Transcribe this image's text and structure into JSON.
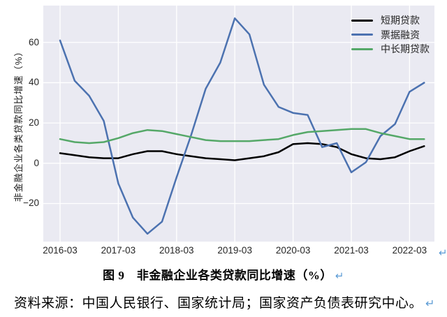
{
  "figure": {
    "y_axis_label": "非金融企业各类贷款同比增速（%）",
    "legend": [
      {
        "label": "短期贷款",
        "color": "#000000"
      },
      {
        "label": "票据融资",
        "color": "#4c72b0"
      },
      {
        "label": "中长期贷款",
        "color": "#55a868"
      }
    ],
    "return_mark": "↵"
  },
  "caption": {
    "text": "图 9　非金融企业各类贷款同比增速（%）",
    "return_mark": "↵"
  },
  "source": {
    "text": "资料来源：中国人民银行、国家统计局；国家资产负债表研究中心。",
    "return_mark": "↵"
  },
  "chart_data": {
    "type": "line",
    "title": "图 9　非金融企业各类贷款同比增速（%）",
    "xlabel": "",
    "ylabel": "非金融企业各类贷款同比增速（%）",
    "x": [
      "2016-03",
      "2016-06",
      "2016-09",
      "2016-12",
      "2017-03",
      "2017-06",
      "2017-09",
      "2017-12",
      "2018-03",
      "2018-06",
      "2018-09",
      "2018-12",
      "2019-03",
      "2019-06",
      "2019-09",
      "2019-12",
      "2020-03",
      "2020-06",
      "2020-09",
      "2020-12",
      "2021-03",
      "2021-06",
      "2021-09",
      "2021-12",
      "2022-03",
      "2022-06"
    ],
    "series": [
      {
        "name": "短期贷款",
        "color": "#000000",
        "values": [
          5,
          4,
          3,
          2.5,
          2.5,
          4.5,
          6,
          6,
          4.5,
          3.5,
          2.5,
          2,
          1.5,
          2.5,
          3.5,
          5.5,
          9.5,
          10,
          9.5,
          8,
          4.5,
          2.5,
          2,
          3,
          6,
          8.5
        ]
      },
      {
        "name": "票据融资",
        "color": "#4c72b0",
        "values": [
          61,
          41,
          33.5,
          21,
          -10,
          -27,
          -35,
          -29,
          -7,
          14,
          37,
          50,
          72,
          64,
          39,
          28,
          25,
          24,
          8,
          10,
          -4.5,
          0.5,
          13.5,
          19.5,
          35.5,
          40
        ]
      },
      {
        "name": "中长期贷款",
        "color": "#55a868",
        "values": [
          12,
          10.5,
          10,
          10.5,
          12.5,
          15,
          16.5,
          16,
          14.5,
          13,
          11.5,
          11,
          11,
          11,
          11.5,
          12,
          14,
          15.5,
          16,
          16.5,
          17,
          17,
          15,
          13.5,
          12,
          12
        ]
      }
    ],
    "ylim": [
      -38.9,
      78.3
    ],
    "y_ticks": [
      -20,
      0,
      20,
      40,
      60
    ],
    "y_tick_labels": [
      "−20",
      "0",
      "20",
      "40",
      "60"
    ],
    "x_tick_indices": [
      0,
      4,
      8,
      12,
      16,
      20,
      24
    ],
    "x_tick_labels": [
      "2016-03",
      "2017-03",
      "2018-03",
      "2019-03",
      "2020-03",
      "2021-03",
      "2022-03"
    ],
    "grid": true,
    "legend_position": "upper right",
    "plot_background": "#eaeaf2",
    "grid_color": "#ffffff"
  }
}
